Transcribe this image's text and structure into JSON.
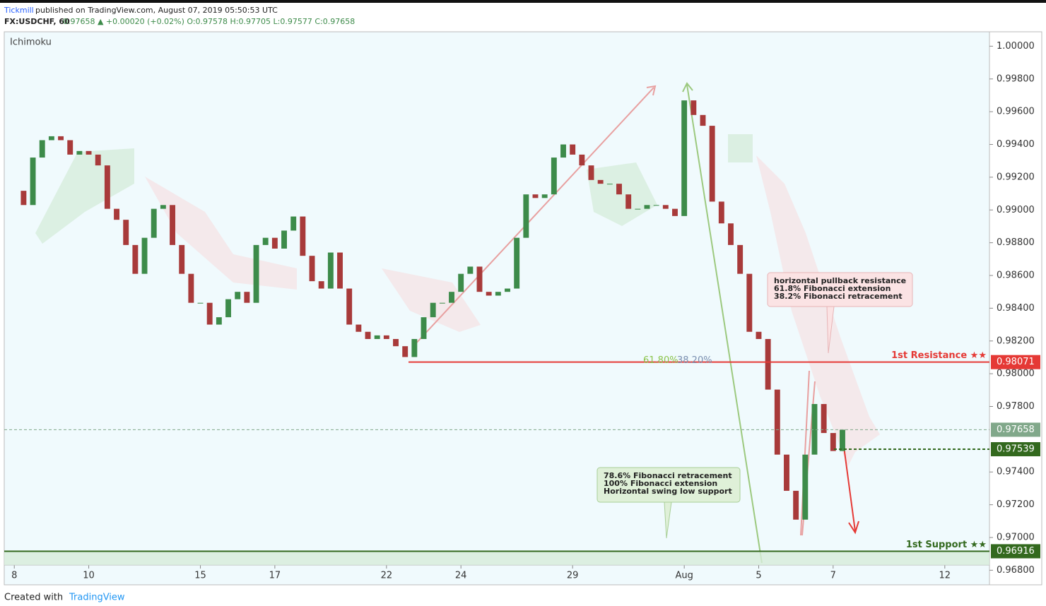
{
  "header": {
    "publisher": "Tickmill",
    "published": "published on TradingView.com, August 07, 2019 05:50:53 UTC",
    "symbol": "FX:USDCHF, 60",
    "quote": "0.97658 ▲ +0.00020 (+0.02%) O:0.97578 H:0.97705 L:0.97577 C:0.97658"
  },
  "footer": {
    "created": "Created with",
    "brand": "TradingView"
  },
  "chart_data": {
    "type": "candlestick",
    "indicator": "Ichimoku",
    "x": [
      0,
      0.25,
      0.5,
      0.75,
      1,
      1.25,
      1.5,
      1.75,
      2,
      2.25,
      2.5,
      2.75,
      3,
      3.25,
      3.5,
      3.75,
      4,
      4.25,
      4.5,
      4.75,
      5,
      5.25,
      5.5,
      5.75,
      6,
      6.25,
      6.5,
      6.75,
      7,
      7.25,
      7.5,
      7.75,
      8,
      8.25,
      8.5,
      8.75,
      9,
      9.25,
      9.5,
      9.75,
      10,
      10.25,
      10.5,
      10.75,
      11,
      11.25,
      11.5,
      11.75,
      12,
      12.25,
      12.5,
      12.75,
      13,
      13.25,
      13.5,
      13.75,
      14,
      14.25,
      14.5,
      14.75,
      15,
      15.25,
      15.5,
      15.75,
      16,
      16.25,
      16.5,
      16.75,
      17,
      17.25,
      17.5,
      17.75,
      18,
      18.25,
      18.5,
      18.75,
      19,
      19.25,
      19.5,
      19.75,
      20,
      20.25,
      20.5,
      20.75,
      21,
      21.25,
      21.5,
      21.75,
      22,
      22.25
    ],
    "values": [
      0.99117,
      0.9903,
      0.9932,
      0.99426,
      0.9945,
      0.99426,
      0.99338,
      0.9936,
      0.99338,
      0.99272,
      0.99007,
      0.9894,
      0.98786,
      0.9861,
      0.9883,
      0.99007,
      0.9903,
      0.98786,
      0.9861,
      0.98433,
      0.98433,
      0.983,
      0.98345,
      0.98455,
      0.985,
      0.98433,
      0.98786,
      0.9883,
      0.98764,
      0.98874,
      0.9896,
      0.9872,
      0.98565,
      0.9852,
      0.9874,
      0.9852,
      0.983,
      0.98256,
      0.98212,
      0.98234,
      0.98212,
      0.98168,
      0.98102,
      0.98212,
      0.98345,
      0.98433,
      0.98433,
      0.985,
      0.9861,
      0.98654,
      0.985,
      0.98477,
      0.985,
      0.9852,
      0.9883,
      0.99095,
      0.99073,
      0.99095,
      0.9932,
      0.994,
      0.99338,
      0.99272,
      0.99183,
      0.9916,
      0.9916,
      0.99095,
      0.99007,
      0.99007,
      0.9903,
      0.9903,
      0.99007,
      0.98963,
      0.99669,
      0.9958,
      0.99514,
      0.99051,
      0.98918,
      0.98786,
      0.9861,
      0.98256,
      0.98212,
      0.97903,
      0.97506,
      0.97285,
      0.97109,
      0.97506,
      0.97815,
      0.97638,
      0.97528,
      0.97658
    ],
    "up_color": "#3d8b4a",
    "down_color": "#a83a3a",
    "xlim": [
      -0.27,
      26.2
    ],
    "xticks": [
      {
        "value": 0,
        "label": "8"
      },
      {
        "value": 2,
        "label": "10"
      },
      {
        "value": 5,
        "label": "15"
      },
      {
        "value": 7,
        "label": "17"
      },
      {
        "value": 10,
        "label": "22"
      },
      {
        "value": 12,
        "label": "24"
      },
      {
        "value": 15,
        "label": "29"
      },
      {
        "value": 18,
        "label": "Aug"
      },
      {
        "value": 20,
        "label": "5"
      },
      {
        "value": 22,
        "label": "7"
      },
      {
        "value": 25,
        "label": "12"
      }
    ],
    "ylim": [
      0.96711,
      1.00088
    ],
    "yticks": [
      {
        "value": 1,
        "label": "1.00000"
      },
      {
        "value": 0.998,
        "label": "0.99800"
      },
      {
        "value": 0.996,
        "label": "0.99600"
      },
      {
        "value": 0.994,
        "label": "0.99400"
      },
      {
        "value": 0.992,
        "label": "0.99200"
      },
      {
        "value": 0.99,
        "label": "0.99000"
      },
      {
        "value": 0.988,
        "label": "0.98800"
      },
      {
        "value": 0.986,
        "label": "0.98600"
      },
      {
        "value": 0.984,
        "label": "0.98400"
      },
      {
        "value": 0.982,
        "label": "0.98200"
      },
      {
        "value": 0.98,
        "label": "0.98000"
      },
      {
        "value": 0.978,
        "label": "0.97800"
      },
      {
        "value": 0.974,
        "label": "0.97400"
      },
      {
        "value": 0.972,
        "label": "0.97200"
      },
      {
        "value": 0.97,
        "label": "0.97000"
      },
      {
        "value": 0.968,
        "label": "0.96800"
      }
    ],
    "levels": [
      {
        "value": 0.98071,
        "color": "#e53935",
        "label": "1st Resistance ★★"
      },
      {
        "value": 0.96916,
        "color": "#33691e",
        "label": "1st Support ★★"
      },
      {
        "value": 0.97539,
        "color": "#33691e"
      },
      {
        "value": 0.97658,
        "color": "#81a88a"
      }
    ],
    "fib_labels": [
      "61.80%",
      "38.20%"
    ],
    "annotations": [
      [
        "horizontal pullback resistance",
        "61.8% Fibonacci extension",
        "38.2% Fibonacci retracement"
      ],
      [
        "78.6% Fibonacci retracement",
        "100% Fibonacci extension",
        "Horizontal swing low support"
      ]
    ]
  }
}
